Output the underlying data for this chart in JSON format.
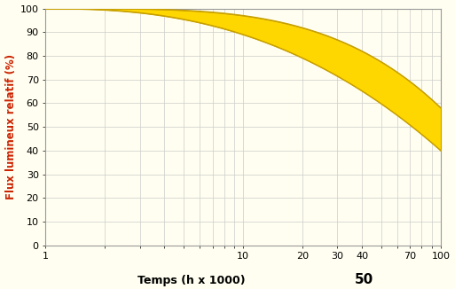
{
  "background_color": "#fffef0",
  "plot_bg_color": "#fffef0",
  "border_color": "#999999",
  "grid_color": "#cccccc",
  "fill_color": "#FFD700",
  "fill_edge_color": "#C8A000",
  "ylabel": "Flux lumineux relatif (%)",
  "xlabel": "Temps (h x 1000)",
  "xlabel_extra": "50",
  "ylabel_color": "#cc2200",
  "xlabel_color": "#000000",
  "xlim": [
    1,
    100
  ],
  "ylim": [
    0,
    100
  ],
  "y_ticks": [
    0,
    10,
    20,
    30,
    40,
    50,
    60,
    70,
    80,
    90,
    100
  ],
  "major_ticks": [
    1,
    2,
    3,
    4,
    5,
    6,
    7,
    8,
    9,
    10,
    20,
    30,
    40,
    50,
    60,
    70,
    80,
    90,
    100
  ],
  "upper_key_points": [
    [
      1,
      100
    ],
    [
      2,
      100
    ],
    [
      3,
      99.5
    ],
    [
      5,
      99
    ],
    [
      7,
      98
    ],
    [
      10,
      97
    ],
    [
      20,
      92
    ],
    [
      30,
      86
    ],
    [
      40,
      80
    ],
    [
      50,
      75
    ],
    [
      70,
      63
    ],
    [
      100,
      58
    ]
  ],
  "lower_key_points": [
    [
      1,
      100
    ],
    [
      2,
      99
    ],
    [
      3,
      97
    ],
    [
      5,
      95
    ],
    [
      7,
      92
    ],
    [
      10,
      89
    ],
    [
      20,
      79
    ],
    [
      30,
      70
    ],
    [
      40,
      62
    ],
    [
      50,
      55
    ],
    [
      70,
      46
    ],
    [
      100,
      40
    ]
  ]
}
